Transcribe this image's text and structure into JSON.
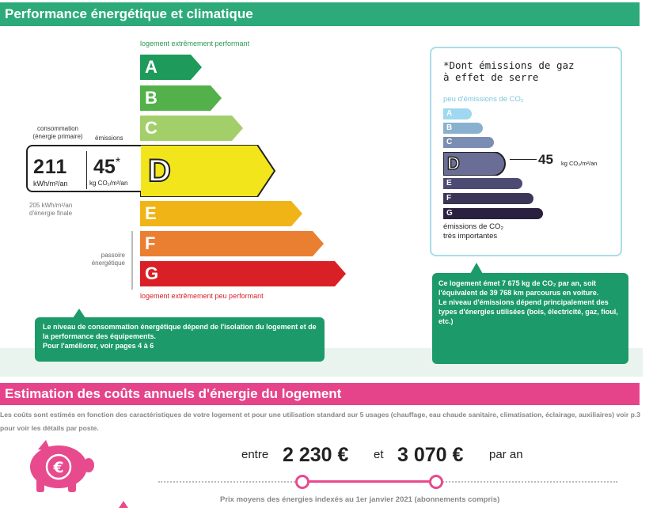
{
  "section1": {
    "title": "Performance énergétique et climatique",
    "top_label": "logement extrêmement performant",
    "bottom_label": "logement extrêmement peu performant",
    "classes": [
      {
        "letter": "A",
        "color": "#1e9a5a"
      },
      {
        "letter": "B",
        "color": "#52b14a"
      },
      {
        "letter": "C",
        "color": "#a3cf6a"
      },
      {
        "letter": "D",
        "color": "#f2e51c"
      },
      {
        "letter": "E",
        "color": "#f0b417"
      },
      {
        "letter": "F",
        "color": "#ea7e31"
      },
      {
        "letter": "G",
        "color": "#d92027"
      }
    ],
    "current_class": "D",
    "consumption_label": "consommation\n(énergie primaire)",
    "emissions_label": "émissions",
    "consumption_value": "211",
    "consumption_unit": "kWh/m²/an",
    "emissions_value": "45",
    "emissions_star": "*",
    "emissions_unit": "kg CO₂/m²/an",
    "final_energy": "205 kWh/m²/an\nd'énergie finale",
    "passoire_label": "passoire\nénergétique",
    "callout_left": "Le niveau de consommation énergétique dépend de l'isolation du logement et de la performance des équipements.\nPour l'améliorer, voir pages 4 à 6"
  },
  "co2": {
    "title": "*Dont émissions de gaz\nà effet de serre",
    "low_label": "peu d'émissions de CO₂",
    "high_label": "émissions de CO₂\ntrès importantes",
    "classes": [
      {
        "letter": "A",
        "color": "#9fd8f0"
      },
      {
        "letter": "B",
        "color": "#8ab0cf"
      },
      {
        "letter": "C",
        "color": "#7a8eb3"
      },
      {
        "letter": "D",
        "color": "#6a6e96"
      },
      {
        "letter": "E",
        "color": "#4d4a73"
      },
      {
        "letter": "F",
        "color": "#3b3558"
      },
      {
        "letter": "G",
        "color": "#2a2040"
      }
    ],
    "value": "45",
    "unit": "kg CO₂/m²/an",
    "callout": "Ce logement émet 7 675 kg de CO₂ par an, soit l'équivalent de 39 768 km parcourus en voiture.\nLe niveau d'émissions dépend principalement des types d'énergies utilisées (bois, électricité, gaz, fioul, etc.)"
  },
  "section2": {
    "title": "Estimation des coûts annuels d'énergie du logement",
    "description": "Les coûts sont estimés en fonction des caractéristiques de votre logement et pour une utilisation standard sur 5 usages (chauffage, eau chaude sanitaire, climatisation, éclairage, auxiliaires) voir p.3 pour voir les détails par poste.",
    "between": "entre",
    "low": "2 230 €",
    "and": "et",
    "high": "3 070 €",
    "per_year": "par an",
    "footnote": "Prix moyens des énergies indexés au  1er janvier 2021 (abonnements compris)"
  }
}
